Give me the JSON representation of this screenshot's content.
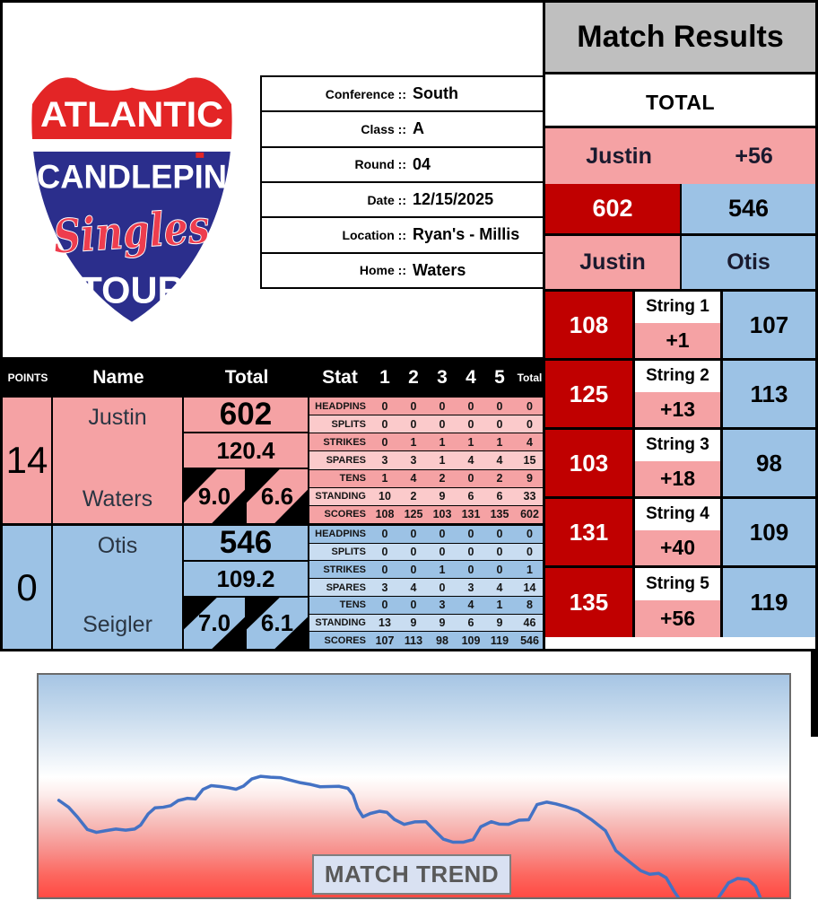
{
  "logo": {
    "line1": "ATLANTIC",
    "line2": "CANDLEPIN",
    "line3": "Singles",
    "line4": "TOUR"
  },
  "info": {
    "separator": "::",
    "rows": [
      {
        "label": "Conference",
        "value": "South"
      },
      {
        "label": "Class",
        "value": "A"
      },
      {
        "label": "Round",
        "value": "04"
      },
      {
        "label": "Date",
        "value": "12/15/2025"
      },
      {
        "label": "Location",
        "value": "Ryan's - Millis"
      },
      {
        "label": "Home",
        "value": "Waters"
      }
    ]
  },
  "match_results": {
    "title": "Match Results",
    "total_label": "TOTAL",
    "leader": {
      "name": "Justin",
      "diff": "+56"
    },
    "totals": {
      "home": "602",
      "away": "546"
    },
    "player_names": {
      "home": "Justin",
      "away": "Otis"
    },
    "strings": [
      {
        "label": "String 1",
        "home": "108",
        "diff": "+1",
        "away": "107"
      },
      {
        "label": "String 2",
        "home": "125",
        "diff": "+13",
        "away": "113"
      },
      {
        "label": "String 3",
        "home": "103",
        "diff": "+18",
        "away": "98"
      },
      {
        "label": "String 4",
        "home": "131",
        "diff": "+40",
        "away": "109"
      },
      {
        "label": "String 5",
        "home": "135",
        "diff": "+56",
        "away": "119"
      }
    ]
  },
  "stats_header": {
    "points": "POINTS",
    "name": "Name",
    "total": "Total",
    "stat": "Stat",
    "games": [
      "1",
      "2",
      "3",
      "4",
      "5"
    ],
    "total_small": "Total"
  },
  "players": [
    {
      "points": "14",
      "first": "Justin",
      "last": "Waters",
      "total": "602",
      "average": "120.4",
      "stat_a": "9.0",
      "stat_b": "6.6",
      "rows": [
        {
          "label": "HEADPINS",
          "values": [
            "0",
            "0",
            "0",
            "0",
            "0",
            "0"
          ]
        },
        {
          "label": "SPLITS",
          "values": [
            "0",
            "0",
            "0",
            "0",
            "0",
            "0"
          ]
        },
        {
          "label": "STRIKES",
          "values": [
            "0",
            "1",
            "1",
            "1",
            "1",
            "4"
          ]
        },
        {
          "label": "SPARES",
          "values": [
            "3",
            "3",
            "1",
            "4",
            "4",
            "15"
          ]
        },
        {
          "label": "TENS",
          "values": [
            "1",
            "4",
            "2",
            "0",
            "2",
            "9"
          ]
        },
        {
          "label": "STANDING",
          "values": [
            "10",
            "2",
            "9",
            "6",
            "6",
            "33"
          ]
        },
        {
          "label": "SCORES",
          "values": [
            "108",
            "125",
            "103",
            "131",
            "135",
            "602"
          ]
        }
      ]
    },
    {
      "points": "0",
      "first": "Otis",
      "last": "Seigler",
      "total": "546",
      "average": "109.2",
      "stat_a": "7.0",
      "stat_b": "6.1",
      "rows": [
        {
          "label": "HEADPINS",
          "values": [
            "0",
            "0",
            "0",
            "0",
            "0",
            "0"
          ]
        },
        {
          "label": "SPLITS",
          "values": [
            "0",
            "0",
            "0",
            "0",
            "0",
            "0"
          ]
        },
        {
          "label": "STRIKES",
          "values": [
            "0",
            "0",
            "1",
            "0",
            "0",
            "1"
          ]
        },
        {
          "label": "SPARES",
          "values": [
            "3",
            "4",
            "0",
            "3",
            "4",
            "14"
          ]
        },
        {
          "label": "TENS",
          "values": [
            "0",
            "0",
            "3",
            "4",
            "1",
            "8"
          ]
        },
        {
          "label": "STANDING",
          "values": [
            "13",
            "9",
            "9",
            "6",
            "9",
            "46"
          ]
        },
        {
          "label": "SCORES",
          "values": [
            "107",
            "113",
            "98",
            "109",
            "119",
            "546"
          ]
        }
      ]
    }
  ],
  "trend": {
    "label": "MATCH TREND",
    "line_color": "#4472C4",
    "points": [
      [
        2.7,
        56.4
      ],
      [
        4,
        59.5
      ],
      [
        5.2,
        64
      ],
      [
        6.5,
        69.5
      ],
      [
        7.7,
        70.8
      ],
      [
        9,
        70
      ],
      [
        10.3,
        69.3
      ],
      [
        11.6,
        69.8
      ],
      [
        12.8,
        69.3
      ],
      [
        13.6,
        67.5
      ],
      [
        14.6,
        62.5
      ],
      [
        15.5,
        59.8
      ],
      [
        16.6,
        59.5
      ],
      [
        17.6,
        58.8
      ],
      [
        18.6,
        56.5
      ],
      [
        19.8,
        55.5
      ],
      [
        20.9,
        55.8
      ],
      [
        21.9,
        51.5
      ],
      [
        23,
        49.8
      ],
      [
        24.2,
        50.2
      ],
      [
        25.4,
        50.8
      ],
      [
        26.3,
        51.4
      ],
      [
        27.3,
        50
      ],
      [
        28.4,
        46.8
      ],
      [
        29.6,
        45.6
      ],
      [
        30.9,
        46
      ],
      [
        32.2,
        46.2
      ],
      [
        33.5,
        47.3
      ],
      [
        34.9,
        48.5
      ],
      [
        36.3,
        49.3
      ],
      [
        37.5,
        50.3
      ],
      [
        38.8,
        50.2
      ],
      [
        40,
        50.1
      ],
      [
        41.2,
        51
      ],
      [
        41.9,
        54
      ],
      [
        42.5,
        60
      ],
      [
        43.2,
        63.8
      ],
      [
        44.2,
        62.3
      ],
      [
        45.4,
        61.3
      ],
      [
        46.4,
        61.8
      ],
      [
        47.4,
        65
      ],
      [
        48.7,
        67.2
      ],
      [
        50.1,
        66.1
      ],
      [
        51.6,
        66
      ],
      [
        52.7,
        69.8
      ],
      [
        53.9,
        73.8
      ],
      [
        55.2,
        75.2
      ],
      [
        56.6,
        75.2
      ],
      [
        57.9,
        74
      ],
      [
        58.9,
        68.3
      ],
      [
        60.3,
        66
      ],
      [
        61.4,
        67.1
      ],
      [
        62.6,
        67.2
      ],
      [
        64,
        65.3
      ],
      [
        65.3,
        65.1
      ],
      [
        66.4,
        58.3
      ],
      [
        67.7,
        57.2
      ],
      [
        68.9,
        58
      ],
      [
        70.2,
        59.2
      ],
      [
        71.9,
        61.2
      ],
      [
        73.7,
        65.2
      ],
      [
        75.5,
        70
      ],
      [
        76.9,
        79
      ],
      [
        78.7,
        84
      ],
      [
        80.2,
        88
      ],
      [
        81.4,
        89.6
      ],
      [
        82.6,
        89.2
      ],
      [
        83.6,
        91.2
      ],
      [
        84.6,
        97
      ],
      [
        85.6,
        102
      ],
      [
        86.8,
        105
      ],
      [
        89.5,
        105
      ],
      [
        90.5,
        100.5
      ],
      [
        91.9,
        93.5
      ],
      [
        93.1,
        91.5
      ],
      [
        94.5,
        92
      ],
      [
        95.5,
        95
      ],
      [
        96.5,
        103
      ]
    ]
  },
  "colors": {
    "dark_red": "#C00000",
    "pink": "#F5A2A4",
    "pink_light": "#FBCACB",
    "blue": "#9CC2E5",
    "blue_light": "#C9DDF1",
    "header_gray": "#BFBFBF",
    "logo_red": "#E32526",
    "logo_blue": "#2B2E8C",
    "trend_line": "#4472C4"
  }
}
